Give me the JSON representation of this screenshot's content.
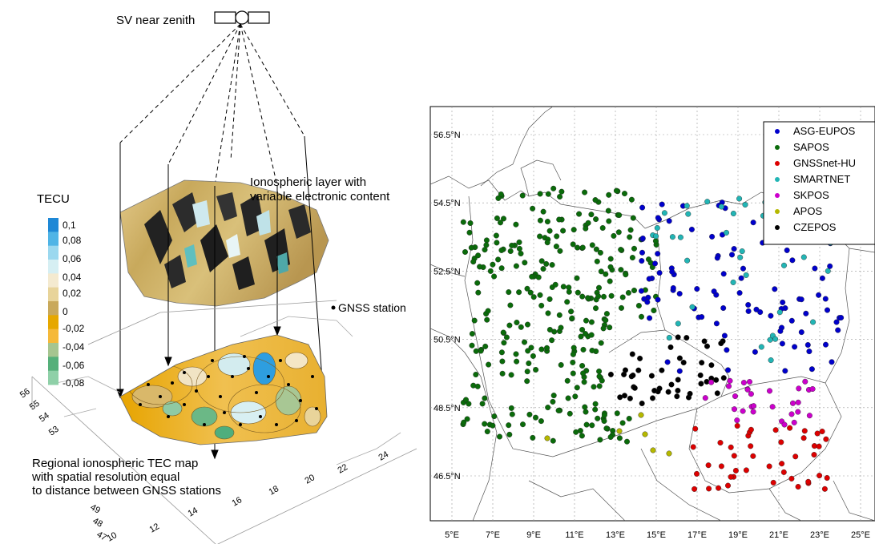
{
  "left_panel": {
    "satellite_label": "SV near zenith",
    "iono_label_line1": "Ionospheric layer with",
    "iono_label_line2": "variable electronic content",
    "station_label": "GNSS station",
    "map_caption_line1": "Regional ionospheric TEC map",
    "map_caption_line2": "with spatial resolution equal",
    "map_caption_line3": "to distance between GNSS stations",
    "colorbar": {
      "title": "TECU",
      "ticks": [
        "0,1",
        "0,08",
        "0,06",
        "0,04",
        "0,02",
        "0",
        "-0,02",
        "-0,04",
        "-0,06",
        "-0,08"
      ],
      "colors": [
        "#1e88d6",
        "#4fb4e6",
        "#9bd8ef",
        "#d6eff3",
        "#f4ead0",
        "#e8d49a",
        "#c9a95b",
        "#e6a800",
        "#f5b93a",
        "#a6c590",
        "#55b07a",
        "#8fd0a8"
      ]
    },
    "lat_ticks": [
      "56",
      "55",
      "54",
      "53",
      "49",
      "48",
      "47"
    ],
    "lon_ticks": [
      "10",
      "12",
      "14",
      "16",
      "18",
      "20",
      "22",
      "24"
    ]
  },
  "right_panel": {
    "lat_labels": [
      "56.5°N",
      "54.5°N",
      "52.5°N",
      "50.5°N",
      "48.5°N",
      "46.5°N"
    ],
    "lon_labels": [
      "5°E",
      "7°E",
      "9°E",
      "11°E",
      "13°E",
      "15°E",
      "17°E",
      "19°E",
      "21°E",
      "23°E",
      "25°E"
    ],
    "legend": [
      {
        "name": "ASG-EUPOS",
        "color": "#0000cc"
      },
      {
        "name": "SAPOS",
        "color": "#0a6b0a"
      },
      {
        "name": "GNSSnet-HU",
        "color": "#dd0000"
      },
      {
        "name": "SMARTNET",
        "color": "#22b5b5"
      },
      {
        "name": "SKPOS",
        "color": "#cc00cc"
      },
      {
        "name": "APOS",
        "color": "#b5b800"
      },
      {
        "name": "CZEPOS",
        "color": "#000000"
      }
    ]
  }
}
